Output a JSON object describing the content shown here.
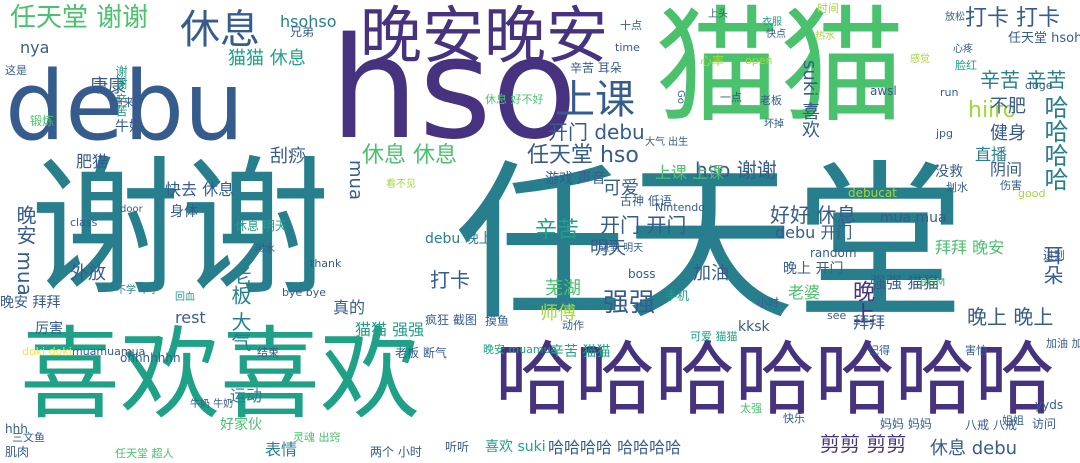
{
  "words": [
    "任天堂",
    "谢谢",
    "猫猫",
    "hso",
    "debu",
    "喜欢喜欢",
    "哈哈哈哈哈哈哈",
    "晚安晚安",
    "休息",
    "上课",
    "任天堂 谢谢",
    "打卡 打卡",
    "开门 debu",
    "休息 休息",
    "任天堂 hso",
    "hso 谢谢",
    "哈哈哈哈",
    "强强",
    "老板 大气",
    "加油",
    "芜湖",
    "师傅",
    "剪剪 剪剪",
    "休息 debu",
    "hiiro",
    "晚上 晚上",
    "晚上",
    "好好 休息",
    "辛苦",
    "开门 开门",
    "明天",
    "可爱",
    "刮痧",
    "快去 休息",
    "肥猫",
    "康康",
    "nya",
    "hsohso",
    "猫猫 休息",
    "健身",
    "不肥",
    "任天堂 hsohso",
    "辛苦 辛苦",
    "没救",
    "直播",
    "阴间",
    "suki 喜欢",
    "打卡",
    "外放",
    "晚安 mua",
    "mua",
    "rest",
    "mua mua",
    "debu 开门",
    "拜拜 晚安",
    "强强 猫猫",
    "老婆",
    "拜拜",
    "耳朵",
    "上课 上课",
    "游戏 声音",
    "真的",
    "猫猫 强强",
    "辛苦 猫猫",
    "kksk",
    "运动",
    "好家伙",
    "表情",
    "喜欢 suki",
    "哈哈哈哈 哈哈哈哈",
    "晚上 开门",
    "debu 晚上",
    "ohhhhhhh",
    "厉害",
    "晚安 拜拜",
    "牛奶",
    "锻炼",
    "身体",
    "谢谢 辛苦",
    "Nintendo",
    "古神 低语",
    "debucat",
    "休息 明天",
    "door",
    "class",
    "thank",
    "boss",
    "see",
    "random",
    "BGM",
    "awsl",
    "open",
    "time",
    "doge",
    "run",
    "jpg",
    "good",
    "进到",
    "小时",
    "两个 小时",
    "听听",
    "肌肉",
    "hhh",
    "八戒 八戒",
    "yyds",
    "访问",
    "姐姐",
    "快乐",
    "太强",
    "妈妈 妈妈",
    "疯狂 截图",
    "摸鱼",
    "拿来",
    "一点",
    "老板",
    "时间",
    "上头",
    "衣服",
    "热水",
    "心疼",
    "脸红",
    "感觉",
    "放松",
    "快点",
    "心率",
    "坏掉",
    "兄弟",
    "这是",
    "老板 断气",
    "doki doki",
    "bye bye",
    "害怕",
    "可爱 猫猫",
    "加油 加油",
    "划水",
    "伤害",
    "记得",
    "休息 好不好",
    "看不见",
    "三文鱼",
    "灵魂 出窍",
    "任天堂 超人",
    "牛奶 牛奶",
    "muamuamua",
    "不学 不学",
    "回血",
    "喝水",
    "结束",
    "进到 明天",
    "晚安 muamua",
    "动作",
    "手机",
    "大气 出生",
    "辛苦 耳朵",
    "十点",
    "Go",
    "muamua 晚安"
  ]
}
